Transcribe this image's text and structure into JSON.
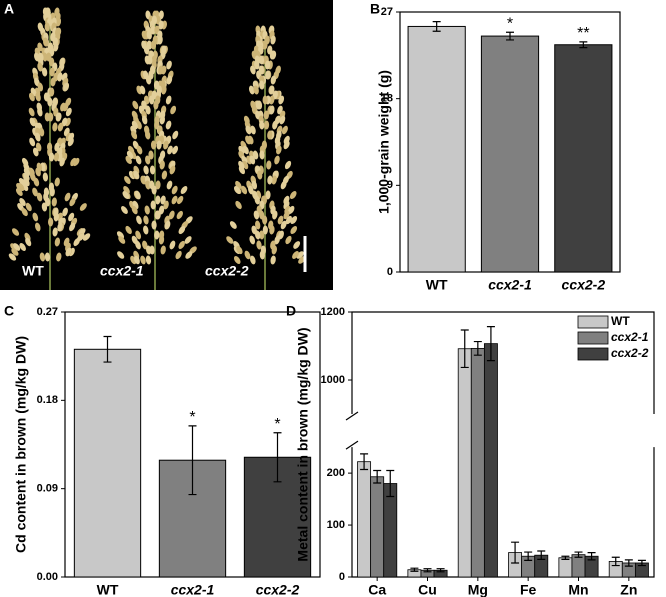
{
  "photo": {
    "label": "A",
    "captions": [
      "WT",
      "ccx2-1",
      "ccx2-2"
    ]
  },
  "chart_data": [
    {
      "type": "bar",
      "panel": "B",
      "ylabel": "1,000-grain weight (g)",
      "categories": [
        "WT",
        "ccx2-1",
        "ccx2-2"
      ],
      "values": [
        25.5,
        24.5,
        23.6
      ],
      "errors": [
        0.5,
        0.4,
        0.3
      ],
      "colors": [
        "#c8c8c8",
        "#808080",
        "#404040"
      ],
      "annotations": [
        null,
        "*",
        "**"
      ],
      "ylim": [
        0,
        27
      ],
      "yticks": [
        0,
        9,
        18,
        27
      ]
    },
    {
      "type": "bar",
      "panel": "C",
      "ylabel": "Cd content in brown (mg/kg DW)",
      "categories": [
        "WT",
        "ccx2-1",
        "ccx2-2"
      ],
      "values": [
        0.232,
        0.119,
        0.122
      ],
      "errors": [
        0.013,
        0.035,
        0.025
      ],
      "colors": [
        "#c8c8c8",
        "#808080",
        "#404040"
      ],
      "annotations": [
        null,
        "*",
        "*"
      ],
      "ylim": [
        0,
        0.27
      ],
      "yticks": [
        {
          "value": 0,
          "label": "0.00"
        },
        0.09,
        0.18,
        0.27
      ]
    },
    {
      "type": "grouped_bar",
      "panel": "D",
      "ylabel": "Metal content in brown (mg/kg DW)",
      "categories": [
        "Ca",
        "Cu",
        "Mg",
        "Fe",
        "Mn",
        "Zn"
      ],
      "series": [
        {
          "name": "WT",
          "color": "#c8c8c8",
          "values": [
            222,
            14,
            1092,
            47,
            37,
            30
          ],
          "errors": [
            15,
            3,
            55,
            20,
            3,
            8
          ]
        },
        {
          "name": "ccx2-1",
          "color": "#808080",
          "values": [
            193,
            13,
            1093,
            40,
            43,
            27
          ],
          "errors": [
            12,
            3,
            20,
            8,
            5,
            6
          ]
        },
        {
          "name": "ccx2-2",
          "color": "#404040",
          "values": [
            180,
            13,
            1107,
            42,
            40,
            27
          ],
          "errors": [
            25,
            3,
            50,
            8,
            7,
            5
          ]
        }
      ],
      "ylim": [
        0,
        1200
      ],
      "ybreak": [
        250,
        900
      ],
      "yticks": [
        0,
        100,
        200,
        1000,
        1200
      ],
      "legend": "top-right"
    }
  ]
}
